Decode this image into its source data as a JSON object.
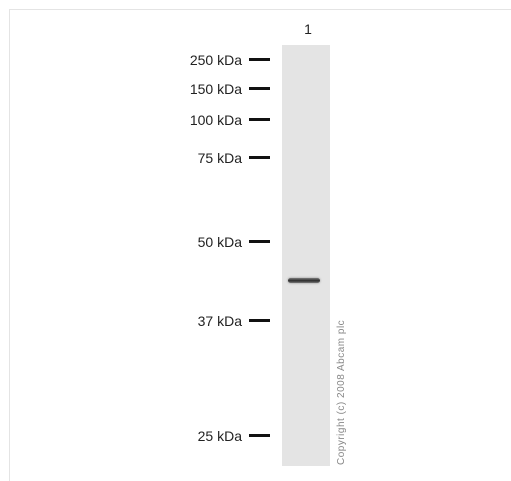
{
  "blot": {
    "lanes": [
      {
        "label": "1"
      }
    ],
    "markers": [
      {
        "label": "250 kDa"
      },
      {
        "label": "150 kDa"
      },
      {
        "label": "100 kDa"
      },
      {
        "label": "75 kDa"
      },
      {
        "label": "50 kDa"
      },
      {
        "label": "37 kDa"
      },
      {
        "label": "25 kDa"
      }
    ],
    "copyright": "Copyright (c) 2008 Abcam plc"
  }
}
